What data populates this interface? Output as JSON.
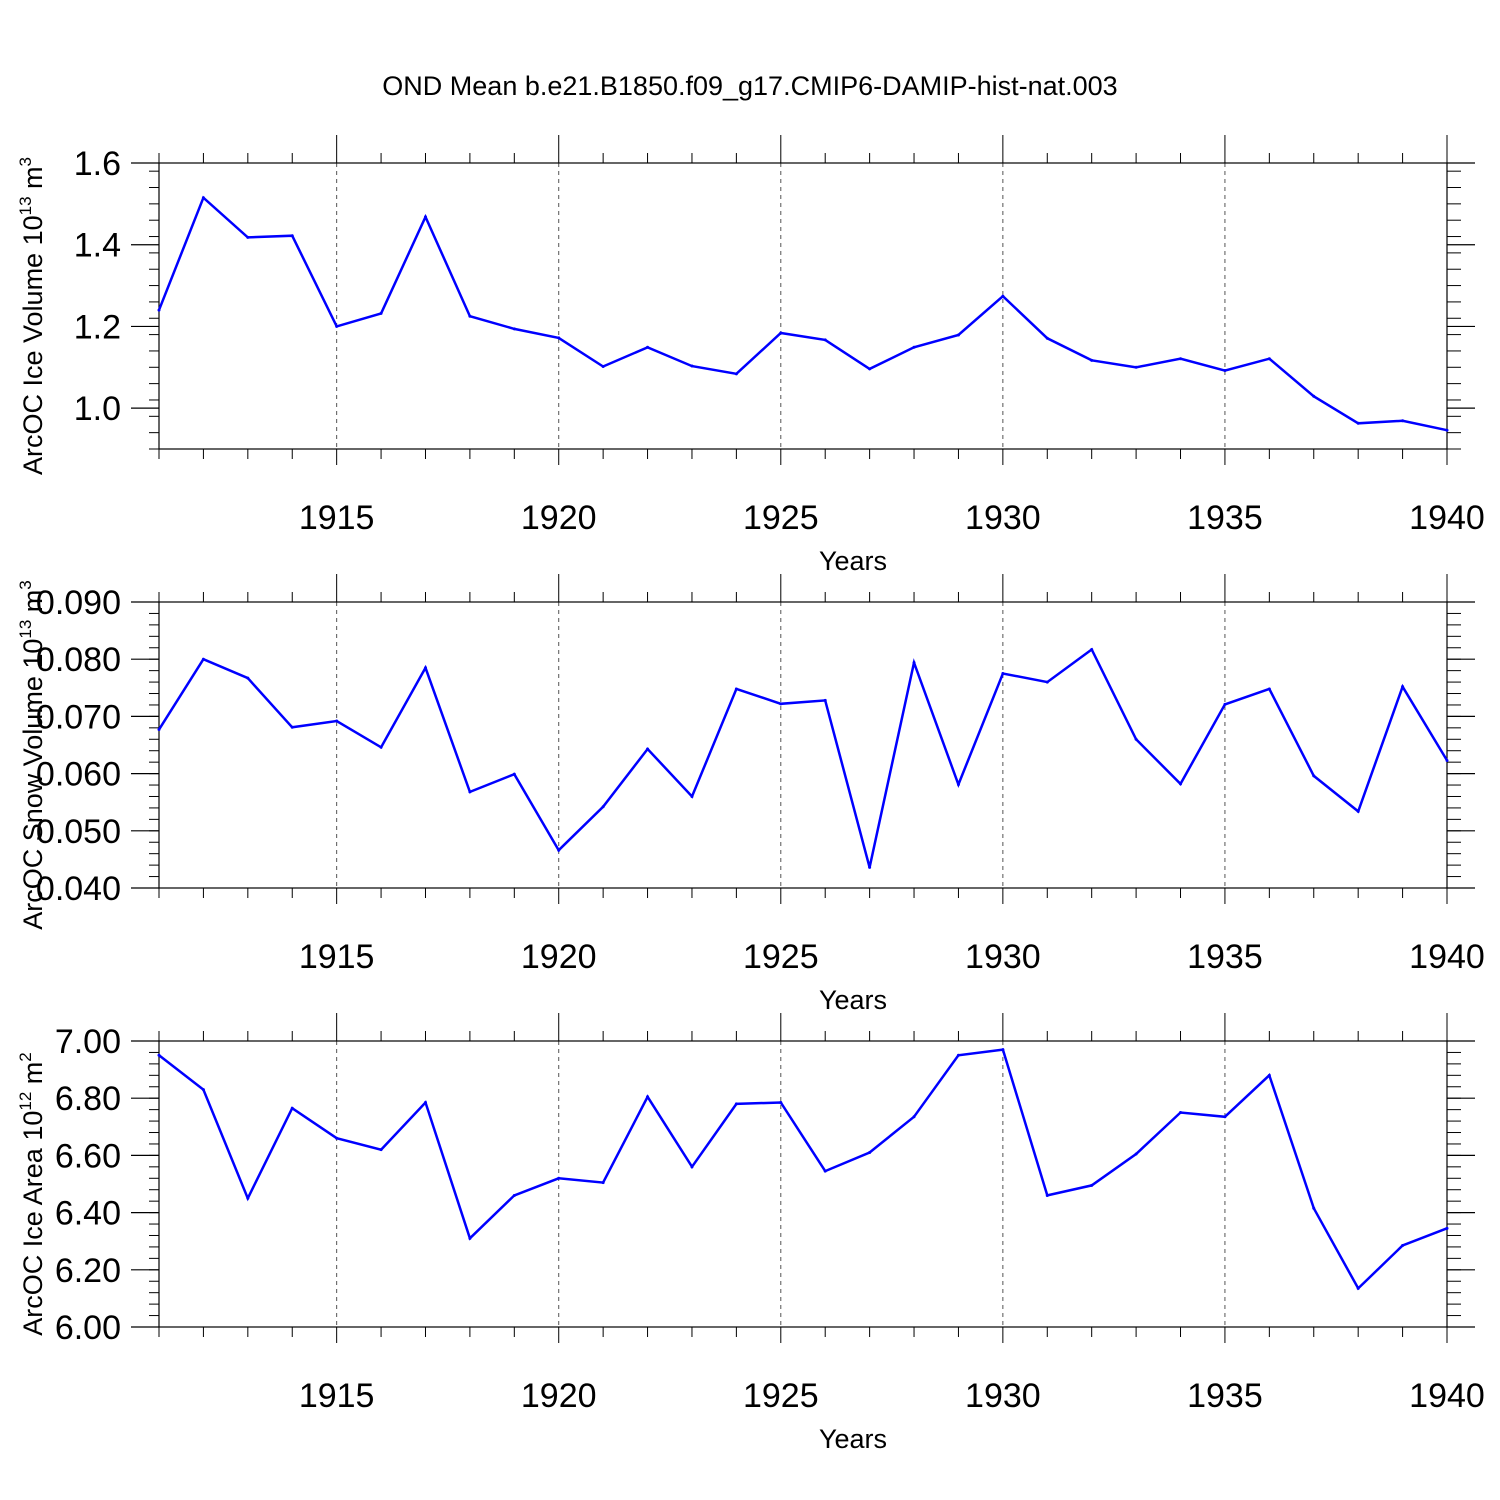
{
  "figure_title": "OND Mean b.e21.B1850.f09_g17.CMIP6-DAMIP-hist-nat.003",
  "colors": {
    "line": "#0000ff",
    "axis": "#000000",
    "grid": "#555555"
  },
  "chart_data": [
    {
      "type": "line",
      "name": "ice-volume",
      "xlabel": "Years",
      "ylabel_parts": [
        "ArcOC Ice Volume 10",
        "13",
        " m",
        "3"
      ],
      "xlim": [
        1911,
        1940
      ],
      "ylim": [
        0.9,
        1.6
      ],
      "yticks": [
        1.0,
        1.2,
        1.4,
        1.6
      ],
      "yticklabels": [
        "1.0",
        "1.2",
        "1.4",
        "1.6"
      ],
      "xticks": [
        1915,
        1920,
        1925,
        1930,
        1935,
        1940
      ],
      "xticklabels": [
        "1915",
        "1920",
        "1925",
        "1930",
        "1935",
        "1940"
      ],
      "grid_x": [
        1915,
        1920,
        1925,
        1930,
        1935
      ],
      "x": [
        1911,
        1912,
        1913,
        1914,
        1915,
        1916,
        1917,
        1918,
        1919,
        1920,
        1921,
        1922,
        1923,
        1924,
        1925,
        1926,
        1927,
        1928,
        1929,
        1930,
        1931,
        1932,
        1933,
        1934,
        1935,
        1936,
        1937,
        1938,
        1939,
        1940
      ],
      "values": [
        1.24,
        1.515,
        1.418,
        1.422,
        1.2,
        1.232,
        1.468,
        1.225,
        1.194,
        1.172,
        1.102,
        1.149,
        1.103,
        1.084,
        1.184,
        1.167,
        1.096,
        1.149,
        1.179,
        1.274,
        1.171,
        1.117,
        1.1,
        1.121,
        1.092,
        1.121,
        1.029,
        0.963,
        0.969,
        0.946
      ]
    },
    {
      "type": "line",
      "name": "snow-volume",
      "xlabel": "Years",
      "ylabel_parts": [
        "ArcOC Snow Volume 10",
        "13",
        " m",
        "3"
      ],
      "xlim": [
        1911,
        1940
      ],
      "ylim": [
        0.04,
        0.09
      ],
      "yticks": [
        0.04,
        0.05,
        0.06,
        0.07,
        0.08,
        0.09
      ],
      "yticklabels": [
        "0.040",
        "0.050",
        "0.060",
        "0.070",
        "0.080",
        "0.090"
      ],
      "xticks": [
        1915,
        1920,
        1925,
        1930,
        1935,
        1940
      ],
      "xticklabels": [
        "1915",
        "1920",
        "1925",
        "1930",
        "1935",
        "1940"
      ],
      "grid_x": [
        1915,
        1920,
        1925,
        1930,
        1935
      ],
      "x": [
        1911,
        1912,
        1913,
        1914,
        1915,
        1916,
        1917,
        1918,
        1919,
        1920,
        1921,
        1922,
        1923,
        1924,
        1925,
        1926,
        1927,
        1928,
        1929,
        1930,
        1931,
        1932,
        1933,
        1934,
        1935,
        1936,
        1937,
        1938,
        1939,
        1940
      ],
      "values": [
        0.0677,
        0.08,
        0.0767,
        0.0681,
        0.0692,
        0.0646,
        0.0785,
        0.0568,
        0.0599,
        0.0466,
        0.0542,
        0.0643,
        0.056,
        0.0748,
        0.0722,
        0.0728,
        0.0436,
        0.0794,
        0.0581,
        0.0775,
        0.076,
        0.0817,
        0.066,
        0.0582,
        0.0721,
        0.0748,
        0.0596,
        0.0534,
        0.0752,
        0.0623
      ]
    },
    {
      "type": "line",
      "name": "ice-area",
      "xlabel": "Years",
      "ylabel_parts": [
        "ArcOC Ice Area 10",
        "12",
        " m",
        "2"
      ],
      "xlim": [
        1911,
        1940
      ],
      "ylim": [
        6.0,
        7.0
      ],
      "yticks": [
        6.0,
        6.2,
        6.4,
        6.6,
        6.8,
        7.0
      ],
      "yticklabels": [
        "6.00",
        "6.20",
        "6.40",
        "6.60",
        "6.80",
        "7.00"
      ],
      "xticks": [
        1915,
        1920,
        1925,
        1930,
        1935,
        1940
      ],
      "xticklabels": [
        "1915",
        "1920",
        "1925",
        "1930",
        "1935",
        "1940"
      ],
      "grid_x": [
        1915,
        1920,
        1925,
        1930,
        1935
      ],
      "x": [
        1911,
        1912,
        1913,
        1914,
        1915,
        1916,
        1917,
        1918,
        1919,
        1920,
        1921,
        1922,
        1923,
        1924,
        1925,
        1926,
        1927,
        1928,
        1929,
        1930,
        1931,
        1932,
        1933,
        1934,
        1935,
        1936,
        1937,
        1938,
        1939,
        1940
      ],
      "values": [
        6.95,
        6.83,
        6.45,
        6.765,
        6.66,
        6.62,
        6.785,
        6.31,
        6.46,
        6.52,
        6.505,
        6.805,
        6.56,
        6.78,
        6.785,
        6.545,
        6.61,
        6.735,
        6.95,
        6.97,
        6.46,
        6.495,
        6.605,
        6.75,
        6.735,
        6.88,
        6.415,
        6.135,
        6.285,
        6.345
      ]
    }
  ]
}
